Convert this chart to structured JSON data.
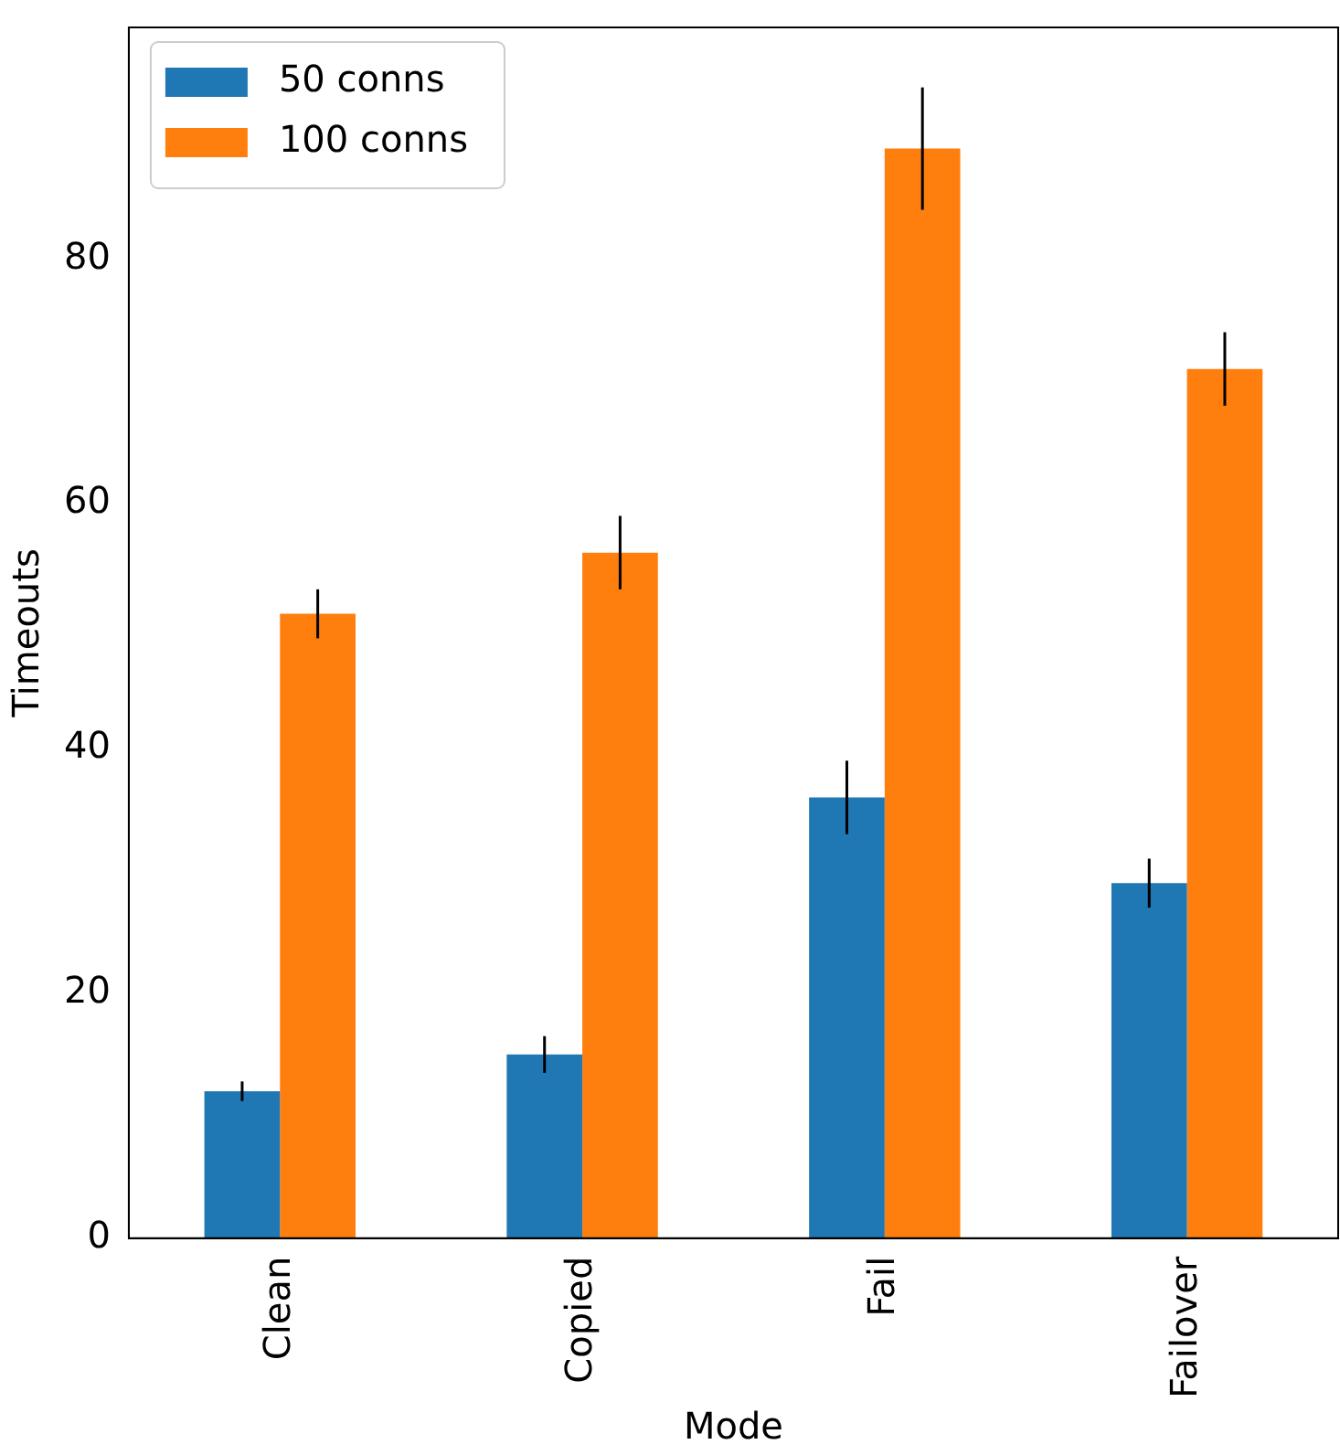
{
  "chart_data": {
    "type": "bar",
    "xlabel": "Mode",
    "ylabel": "Timeouts",
    "categories": [
      "Clean",
      "Copied",
      "Fail",
      "Failover"
    ],
    "series": [
      {
        "name": "50 conns",
        "color": "#1f77b4",
        "values": [
          12,
          15,
          36,
          29
        ],
        "errors": [
          0.8,
          1.5,
          3,
          2
        ]
      },
      {
        "name": "100 conns",
        "color": "#ff7f0e",
        "values": [
          51,
          56,
          89,
          71
        ],
        "errors": [
          2,
          3,
          5,
          3
        ]
      }
    ],
    "ylim": [
      0,
      98.9
    ],
    "yticks": [
      0,
      20,
      40,
      60,
      80
    ],
    "grid": false,
    "legend": "top left"
  }
}
